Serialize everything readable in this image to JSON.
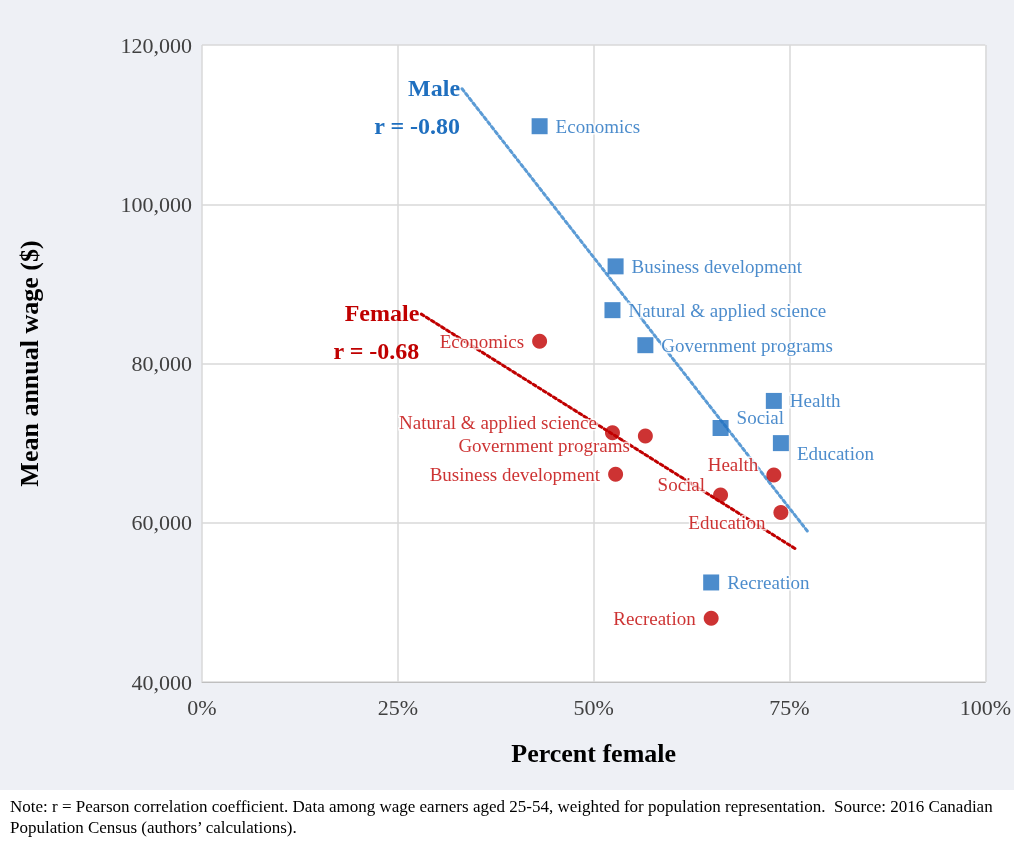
{
  "chart_data": {
    "type": "scatter",
    "xlabel": "Percent female",
    "ylabel": "Mean annual wage ($)",
    "xlim": [
      0,
      100
    ],
    "xticks": [
      {
        "value": 0,
        "label": "0%"
      },
      {
        "value": 25,
        "label": "25%"
      },
      {
        "value": 50,
        "label": "50%"
      },
      {
        "value": 75,
        "label": "75%"
      },
      {
        "value": 100,
        "label": "100%"
      }
    ],
    "ylim": [
      40000,
      120000
    ],
    "yticks": [
      {
        "value": 40000,
        "label": "40,000"
      },
      {
        "value": 60000,
        "label": "60,000"
      },
      {
        "value": 80000,
        "label": "80,000"
      },
      {
        "value": 100000,
        "label": "100,000"
      },
      {
        "value": 120000,
        "label": "120,000"
      }
    ],
    "grid": true,
    "legend": false,
    "series": [
      {
        "name": "Male",
        "color": "#1f6fbf",
        "marker": "square",
        "x": [
          43.1,
          52.8,
          52.4,
          56.6,
          73.0,
          66.2,
          73.9,
          65.0
        ],
        "values": [
          109800,
          92200,
          86700,
          82300,
          75300,
          71900,
          70000,
          52500
        ],
        "value_labels": [
          "Economics",
          "Business development",
          "Natural & applied science",
          "Government programs",
          "Health",
          "Social",
          "Education",
          "Recreation"
        ]
      },
      {
        "name": "Female",
        "color": "#c00000",
        "marker": "circle",
        "x": [
          43.1,
          52.4,
          56.6,
          52.8,
          73.0,
          66.2,
          73.9,
          65.0
        ],
        "values": [
          82800,
          71300,
          70900,
          66100,
          66000,
          63500,
          61300,
          48000
        ],
        "value_labels": [
          "Economics",
          "Natural & applied science",
          "Government programs",
          "Business development",
          "Health",
          "Social",
          "Education",
          "Recreation"
        ]
      },
      {
        "type": "line",
        "color": "#5b9bd5",
        "line_style": "dotted",
        "marker": "none",
        "x": [
          33.2,
          77.4
        ],
        "values": [
          114500,
          58800
        ]
      },
      {
        "type": "line",
        "color": "#c00000",
        "line_style": "dotted",
        "marker": "none",
        "x": [
          28.0,
          75.8
        ],
        "values": [
          86200,
          56700
        ]
      }
    ],
    "annotations": [
      "r = -0.80",
      "r = -0.68",
      "Note: r = Pearson correlation coefficient. Data among wage earners aged 25-54, weighted for population representation.  Source: 2016 Canadian Population Census (authors’ calculations)."
    ]
  }
}
